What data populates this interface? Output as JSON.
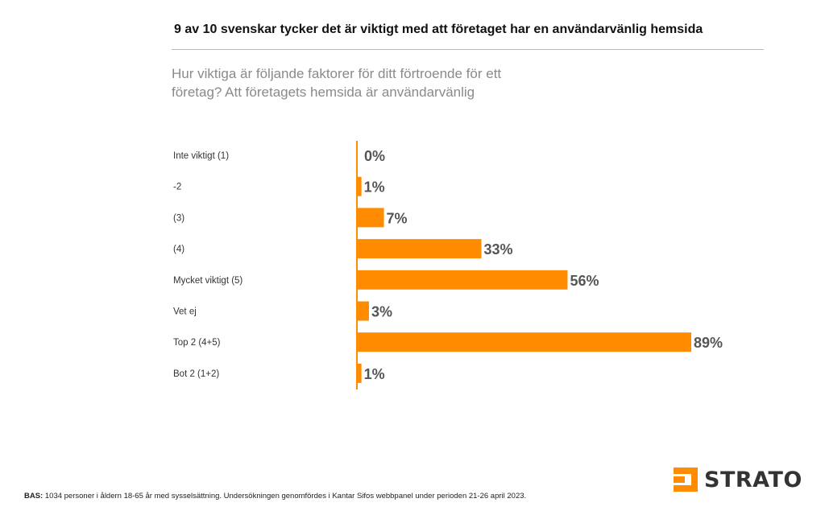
{
  "title": "9 av 10 svenskar tycker det är viktigt med att företaget har en användarvänlig hemsida",
  "question": "Hur viktiga är följande faktorer för ditt förtroende för ett företag? Att företagets hemsida är användarvänlig",
  "colors": {
    "accent": "#ff8c00",
    "rule": "#f5a86a",
    "value_text": "#555555"
  },
  "chart_data": {
    "type": "bar",
    "orientation": "horizontal",
    "categories": [
      "Inte viktigt (1)",
      "-2",
      "(3)",
      "(4)",
      "Mycket viktigt (5)",
      "Vet ej",
      "Top 2 (4+5)",
      "Bot 2 (1+2)"
    ],
    "values": [
      0,
      1,
      7,
      33,
      56,
      3,
      89,
      1
    ],
    "value_labels": [
      "0%",
      "1%",
      "7%",
      "33%",
      "56%",
      "3%",
      "89%",
      "1%"
    ],
    "unit": "%",
    "xlim": [
      0,
      100
    ],
    "grid": false,
    "legend": "none"
  },
  "footnote": {
    "label": "BAS:",
    "text": " 1034 personer i åldern 18-65 år med sysselsättning. Undersökningen genomfördes i Kantar Sifos webbpanel under perioden 21-26 april 2023."
  },
  "logo": {
    "text": "STRATO",
    "icon": "strato-logo-icon"
  }
}
